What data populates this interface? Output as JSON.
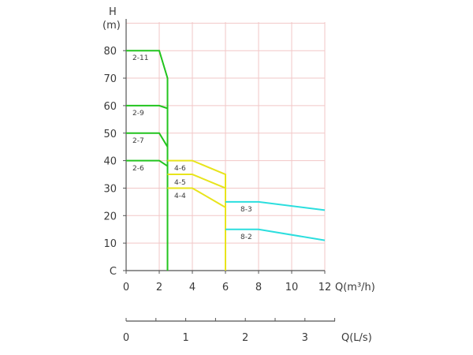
{
  "chart_data": {
    "type": "line",
    "y_axis": {
      "title": "H",
      "unit": "(m)",
      "ticks": [
        "C",
        "10",
        "20",
        "30",
        "40",
        "50",
        "60",
        "70",
        "80"
      ],
      "range": [
        0,
        90
      ]
    },
    "x_axis": {
      "title": "Q(m³/h)",
      "ticks": [
        "0",
        "2",
        "4",
        "6",
        "8",
        "10",
        "12"
      ],
      "range": [
        0,
        12
      ]
    },
    "secondary_x_axis": {
      "title": "Q(L/s)",
      "ticks": [
        "0",
        "1",
        "2",
        "3"
      ],
      "range": [
        0,
        3.333
      ]
    },
    "grid": true,
    "series": [
      {
        "name": "2-11",
        "color": "#22c41e",
        "points": [
          [
            0,
            80
          ],
          [
            2,
            80
          ],
          [
            2.5,
            70
          ],
          [
            2.5,
            0
          ]
        ]
      },
      {
        "name": "2-9",
        "color": "#22c41e",
        "points": [
          [
            0,
            60
          ],
          [
            2,
            60
          ],
          [
            2.5,
            59
          ]
        ]
      },
      {
        "name": "2-7",
        "color": "#22c41e",
        "points": [
          [
            0,
            50
          ],
          [
            2,
            50
          ],
          [
            2.5,
            45
          ]
        ]
      },
      {
        "name": "2-6",
        "color": "#22c41e",
        "points": [
          [
            0,
            40
          ],
          [
            2,
            40
          ],
          [
            2.5,
            38
          ]
        ]
      },
      {
        "name": "4-6",
        "color": "#e8e41c",
        "points": [
          [
            2.5,
            40
          ],
          [
            4,
            40
          ],
          [
            6,
            35
          ],
          [
            6,
            0
          ]
        ]
      },
      {
        "name": "4-5",
        "color": "#e8e41c",
        "points": [
          [
            2.5,
            35
          ],
          [
            4,
            35
          ],
          [
            6,
            30
          ]
        ]
      },
      {
        "name": "4-4",
        "color": "#e8e41c",
        "points": [
          [
            2.5,
            30
          ],
          [
            4,
            30
          ],
          [
            6,
            23
          ]
        ]
      },
      {
        "name": "8-3",
        "color": "#2bdede",
        "points": [
          [
            6,
            25
          ],
          [
            8,
            25
          ],
          [
            12,
            22
          ]
        ]
      },
      {
        "name": "8-2",
        "color": "#2bdede",
        "points": [
          [
            6,
            15
          ],
          [
            8,
            15
          ],
          [
            12,
            11
          ]
        ]
      }
    ]
  }
}
